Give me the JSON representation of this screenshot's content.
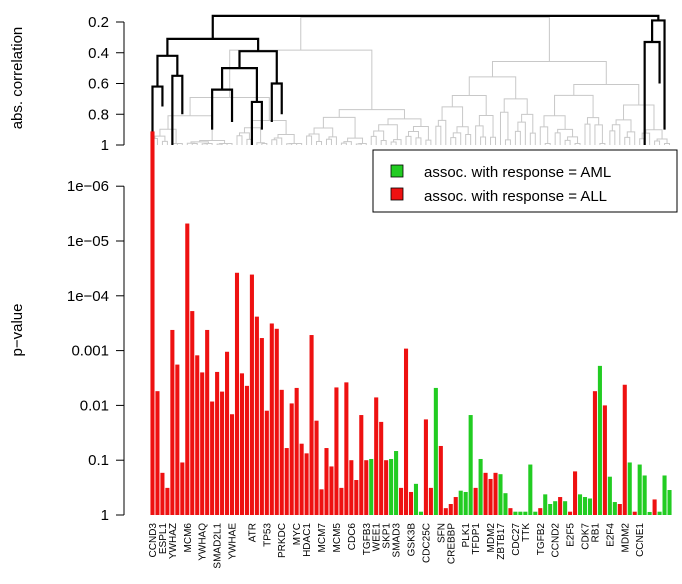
{
  "chart_data": [
    {
      "type": "dendrogram",
      "ylabel": "abs. correlation",
      "ylim": [
        1,
        0.1
      ],
      "yticks": [
        {
          "value": 0.2,
          "label": "0.2"
        },
        {
          "value": 0.4,
          "label": "0.4"
        },
        {
          "value": 0.6,
          "label": "0.6"
        },
        {
          "value": 0.8,
          "label": "0.8"
        },
        {
          "value": 1.0,
          "label": "1"
        }
      ],
      "highlight_color": "#000000",
      "background_color": "#c8c8c8"
    },
    {
      "type": "bar",
      "ylabel": "p−value",
      "yscale": "log-reversed",
      "ylim": [
        1,
        1e-07
      ],
      "yticks": [
        {
          "value": 1e-06,
          "label": "1e−06"
        },
        {
          "value": 1e-05,
          "label": "1e−05"
        },
        {
          "value": 0.0001,
          "label": "1e−04"
        },
        {
          "value": 0.001,
          "label": "0.001"
        },
        {
          "value": 0.01,
          "label": "0.01"
        },
        {
          "value": 0.1,
          "label": "0.1"
        },
        {
          "value": 1,
          "label": "1"
        }
      ],
      "legend": {
        "placement": "top-right",
        "entries": [
          {
            "label": "assoc. with response = AML",
            "color": "#22cc22"
          },
          {
            "label": "assoc. with response = ALL",
            "color": "#ee1111"
          }
        ]
      },
      "colors": {
        "AML": "#22cc22",
        "ALL": "#ee1111"
      },
      "bars": [
        {
          "label": "CCND3",
          "p": 1e-07,
          "g": "ALL"
        },
        {
          "label": "",
          "p": 0.0055,
          "g": "ALL"
        },
        {
          "label": "ESPL1",
          "p": 0.17,
          "g": "ALL"
        },
        {
          "label": "",
          "p": 0.32,
          "g": "ALL"
        },
        {
          "label": "YWHAZ",
          "p": 0.00042,
          "g": "ALL"
        },
        {
          "label": "",
          "p": 0.0018,
          "g": "ALL"
        },
        {
          "label": "",
          "p": 0.11,
          "g": "ALL"
        },
        {
          "label": "MCM6",
          "p": 4.8e-06,
          "g": "ALL"
        },
        {
          "label": "",
          "p": 0.00019,
          "g": "ALL"
        },
        {
          "label": "",
          "p": 0.00122,
          "g": "ALL"
        },
        {
          "label": "YWHAQ",
          "p": 0.0025,
          "g": "ALL"
        },
        {
          "label": "",
          "p": 0.00042,
          "g": "ALL"
        },
        {
          "label": "",
          "p": 0.0085,
          "g": "ALL"
        },
        {
          "label": "SMAD2L1",
          "p": 0.00245,
          "g": "ALL"
        },
        {
          "label": "",
          "p": 0.0056,
          "g": "ALL"
        },
        {
          "label": "",
          "p": 0.00105,
          "g": "ALL"
        },
        {
          "label": "YWHAE",
          "p": 0.0145,
          "g": "ALL"
        },
        {
          "label": "",
          "p": 3.8e-05,
          "g": "ALL"
        },
        {
          "label": "",
          "p": 0.0026,
          "g": "ALL"
        },
        {
          "label": "",
          "p": 0.0044,
          "g": "ALL"
        },
        {
          "label": "ATR",
          "p": 4.1e-05,
          "g": "ALL"
        },
        {
          "label": "",
          "p": 0.00024,
          "g": "ALL"
        },
        {
          "label": "",
          "p": 0.00059,
          "g": "ALL"
        },
        {
          "label": "TP53",
          "p": 0.0125,
          "g": "ALL"
        },
        {
          "label": "",
          "p": 0.00032,
          "g": "ALL"
        },
        {
          "label": "",
          "p": 0.0004,
          "g": "ALL"
        },
        {
          "label": "PRKDC",
          "p": 0.0052,
          "g": "ALL"
        },
        {
          "label": "",
          "p": 0.06,
          "g": "ALL"
        },
        {
          "label": "",
          "p": 0.0092,
          "g": "ALL"
        },
        {
          "label": "MYC",
          "p": 0.0048,
          "g": "ALL"
        },
        {
          "label": "",
          "p": 0.05,
          "g": "ALL"
        },
        {
          "label": "HDAC1",
          "p": 0.075,
          "g": "ALL"
        },
        {
          "label": "",
          "p": 0.00052,
          "g": "ALL"
        },
        {
          "label": "",
          "p": 0.019,
          "g": "ALL"
        },
        {
          "label": "MCM7",
          "p": 0.34,
          "g": "ALL"
        },
        {
          "label": "",
          "p": 0.06,
          "g": "ALL"
        },
        {
          "label": "",
          "p": 0.13,
          "g": "ALL"
        },
        {
          "label": "MCM5",
          "p": 0.0047,
          "g": "ALL"
        },
        {
          "label": "",
          "p": 0.32,
          "g": "ALL"
        },
        {
          "label": "",
          "p": 0.0038,
          "g": "ALL"
        },
        {
          "label": "CDC6",
          "p": 0.1,
          "g": "ALL"
        },
        {
          "label": "",
          "p": 0.23,
          "g": "ALL"
        },
        {
          "label": "",
          "p": 0.015,
          "g": "ALL"
        },
        {
          "label": "TGFB3",
          "p": 0.1,
          "g": "ALL"
        },
        {
          "label": "",
          "p": 0.095,
          "g": "AML"
        },
        {
          "label": "WEE1",
          "p": 0.00715,
          "g": "ALL"
        },
        {
          "label": "",
          "p": 0.02,
          "g": "ALL"
        },
        {
          "label": "SKP1",
          "p": 0.1,
          "g": "ALL"
        },
        {
          "label": "",
          "p": 0.095,
          "g": "AML"
        },
        {
          "label": "SMAD3",
          "p": 0.068,
          "g": "AML"
        },
        {
          "label": "",
          "p": 0.32,
          "g": "ALL"
        },
        {
          "label": "",
          "p": 0.00092,
          "g": "ALL"
        },
        {
          "label": "GSK3B",
          "p": 0.38,
          "g": "ALL"
        },
        {
          "label": "",
          "p": 0.27,
          "g": "AML"
        },
        {
          "label": "",
          "p": 0.87,
          "g": "AML"
        },
        {
          "label": "CDC25C",
          "p": 0.018,
          "g": "ALL"
        },
        {
          "label": "",
          "p": 0.32,
          "g": "ALL"
        },
        {
          "label": "",
          "p": 0.0048,
          "g": "AML"
        },
        {
          "label": "SFN",
          "p": 0.055,
          "g": "ALL"
        },
        {
          "label": "",
          "p": 0.75,
          "g": "ALL"
        },
        {
          "label": "CREBBP",
          "p": 0.63,
          "g": "ALL"
        },
        {
          "label": "",
          "p": 0.47,
          "g": "ALL"
        },
        {
          "label": "",
          "p": 0.36,
          "g": "AML"
        },
        {
          "label": "PLK1",
          "p": 0.38,
          "g": "AML"
        },
        {
          "label": "",
          "p": 0.015,
          "g": "AML"
        },
        {
          "label": "TFDP1",
          "p": 0.32,
          "g": "ALL"
        },
        {
          "label": "",
          "p": 0.095,
          "g": "AML"
        },
        {
          "label": "",
          "p": 0.17,
          "g": "ALL"
        },
        {
          "label": "MDM2",
          "p": 0.22,
          "g": "ALL"
        },
        {
          "label": "",
          "p": 0.17,
          "g": "ALL"
        },
        {
          "label": "ZBTB17",
          "p": 0.18,
          "g": "AML"
        },
        {
          "label": "",
          "p": 0.4,
          "g": "AML"
        },
        {
          "label": "",
          "p": 0.75,
          "g": "ALL"
        },
        {
          "label": "CDC27",
          "p": 0.87,
          "g": "AML"
        },
        {
          "label": "",
          "p": 0.87,
          "g": "AML"
        },
        {
          "label": "TTK",
          "p": 0.87,
          "g": "AML"
        },
        {
          "label": "",
          "p": 0.12,
          "g": "AML"
        },
        {
          "label": "",
          "p": 0.87,
          "g": "AML"
        },
        {
          "label": "TGFB2",
          "p": 0.75,
          "g": "ALL"
        },
        {
          "label": "",
          "p": 0.42,
          "g": "AML"
        },
        {
          "label": "",
          "p": 0.63,
          "g": "AML"
        },
        {
          "label": "CCND2",
          "p": 0.56,
          "g": "AML"
        },
        {
          "label": "",
          "p": 0.47,
          "g": "ALL"
        },
        {
          "label": "",
          "p": 0.56,
          "g": "AML"
        },
        {
          "label": "E2F5",
          "p": 0.87,
          "g": "ALL"
        },
        {
          "label": "",
          "p": 0.16,
          "g": "ALL"
        },
        {
          "label": "",
          "p": 0.42,
          "g": "AML"
        },
        {
          "label": "CDK7",
          "p": 0.47,
          "g": "AML"
        },
        {
          "label": "",
          "p": 0.5,
          "g": "AML"
        },
        {
          "label": "RB1",
          "p": 0.0055,
          "g": "ALL"
        },
        {
          "label": "",
          "p": 0.0019,
          "g": "AML"
        },
        {
          "label": "",
          "p": 0.01,
          "g": "ALL"
        },
        {
          "label": "E2F4",
          "p": 0.2,
          "g": "AML"
        },
        {
          "label": "",
          "p": 0.58,
          "g": "AML"
        },
        {
          "label": "",
          "p": 0.63,
          "g": "ALL"
        },
        {
          "label": "MDM2",
          "p": 0.0042,
          "g": "ALL"
        },
        {
          "label": "",
          "p": 0.11,
          "g": "AML"
        },
        {
          "label": "",
          "p": 0.87,
          "g": "ALL"
        },
        {
          "label": "CCNE1",
          "p": 0.12,
          "g": "AML"
        },
        {
          "label": "",
          "p": 0.19,
          "g": "AML"
        },
        {
          "label": "",
          "p": 0.88,
          "g": "AML"
        },
        {
          "label": "",
          "p": 0.52,
          "g": "ALL"
        },
        {
          "label": "",
          "p": 0.87,
          "g": "AML"
        },
        {
          "label": "",
          "p": 0.19,
          "g": "AML"
        },
        {
          "label": "",
          "p": 0.35,
          "g": "AML"
        }
      ]
    }
  ]
}
